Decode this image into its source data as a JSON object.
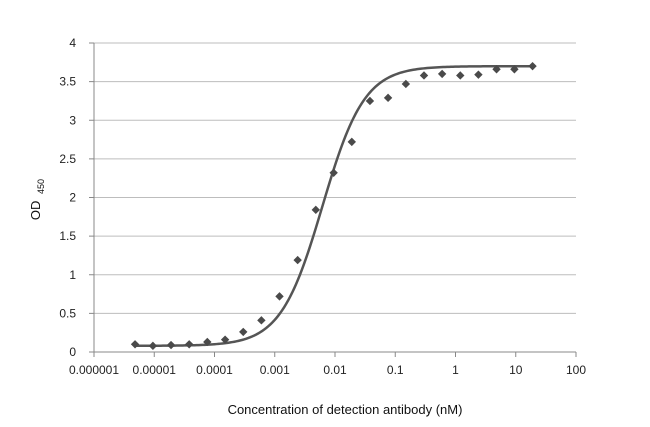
{
  "chart_data": {
    "type": "scatter",
    "title": "",
    "xlabel": "Concentration of detection antibody (nM)",
    "ylabel": {
      "main": "OD",
      "subscript": "450"
    },
    "x_scale": "log",
    "xlim": [
      1e-06,
      100
    ],
    "ylim": [
      0,
      4
    ],
    "x_ticks": [
      1e-06,
      1e-05,
      0.0001,
      0.001,
      0.01,
      0.1,
      1,
      10,
      100
    ],
    "x_tick_labels": [
      "0.000001",
      "0.00001",
      "0.0001",
      "0.001",
      "0.01",
      "0.1",
      "1",
      "10",
      "100"
    ],
    "y_ticks": [
      0,
      0.5,
      1,
      1.5,
      2,
      2.5,
      3,
      3.5,
      4
    ],
    "y_tick_labels": [
      "0",
      "0.5",
      "1",
      "1.5",
      "2",
      "2.5",
      "3",
      "3.5",
      "4"
    ],
    "grid": "horizontal",
    "points": [
      {
        "x": 4.8e-06,
        "y": 0.1
      },
      {
        "x": 9.5e-06,
        "y": 0.08
      },
      {
        "x": 1.9e-05,
        "y": 0.09
      },
      {
        "x": 3.8e-05,
        "y": 0.1
      },
      {
        "x": 7.6e-05,
        "y": 0.13
      },
      {
        "x": 0.00015,
        "y": 0.16
      },
      {
        "x": 0.0003,
        "y": 0.26
      },
      {
        "x": 0.0006,
        "y": 0.41
      },
      {
        "x": 0.0012,
        "y": 0.72
      },
      {
        "x": 0.0024,
        "y": 1.19
      },
      {
        "x": 0.0048,
        "y": 1.84
      },
      {
        "x": 0.0095,
        "y": 2.32
      },
      {
        "x": 0.019,
        "y": 2.72
      },
      {
        "x": 0.038,
        "y": 3.25
      },
      {
        "x": 0.076,
        "y": 3.29
      },
      {
        "x": 0.15,
        "y": 3.47
      },
      {
        "x": 0.3,
        "y": 3.58
      },
      {
        "x": 0.6,
        "y": 3.6
      },
      {
        "x": 1.2,
        "y": 3.58
      },
      {
        "x": 2.4,
        "y": 3.59
      },
      {
        "x": 4.8,
        "y": 3.66
      },
      {
        "x": 9.5,
        "y": 3.66
      },
      {
        "x": 19,
        "y": 3.7
      }
    ],
    "fit_curve": {
      "model": "4PL",
      "bottom": 0.08,
      "top": 3.7,
      "ec50": 0.0062,
      "hill": 1.25
    },
    "colors": {
      "marker": "#4a4a4a",
      "curve": "#555555",
      "grid": "#bdbdbd",
      "axis": "#888888"
    }
  }
}
